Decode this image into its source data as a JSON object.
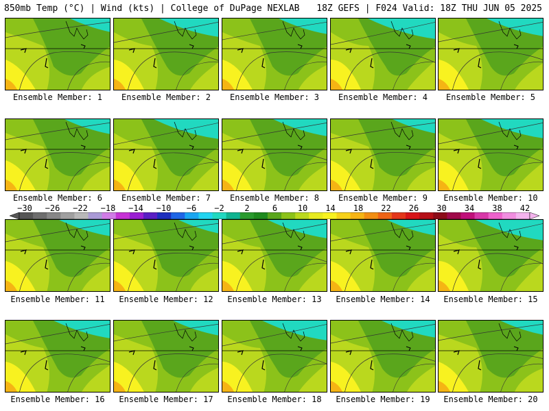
{
  "header": {
    "left": "850mb Temp (°C) | Wind (kts) | College of DuPage NEXLAB",
    "right": "18Z GEFS | F024 Valid: 18Z THU JUN 05 2025"
  },
  "members": [
    "Ensemble Member: 1",
    "Ensemble Member: 2",
    "Ensemble Member: 3",
    "Ensemble Member: 4",
    "Ensemble Member: 5",
    "Ensemble Member: 6",
    "Ensemble Member: 7",
    "Ensemble Member: 8",
    "Ensemble Member: 9",
    "Ensemble Member: 10",
    "Ensemble Member: 11",
    "Ensemble Member: 12",
    "Ensemble Member: 13",
    "Ensemble Member: 14",
    "Ensemble Member: 15",
    "Ensemble Member: 16",
    "Ensemble Member: 17",
    "Ensemble Member: 18",
    "Ensemble Member: 19",
    "Ensemble Member: 20"
  ],
  "colorbar": {
    "labels": [
      "−30",
      "−26",
      "−22",
      "−18",
      "−14",
      "−10",
      "−6",
      "−2",
      "2",
      "6",
      "10",
      "14",
      "18",
      "22",
      "26",
      "30",
      "34",
      "38",
      "42"
    ],
    "colors": [
      "#565656",
      "#6e6e6e",
      "#878787",
      "#a0a0a0",
      "#b8b8b8",
      "#a99ad6",
      "#d17ce6",
      "#c733d6",
      "#9a1fd1",
      "#5a1fc4",
      "#1d2fbd",
      "#1f66e6",
      "#1aa6f0",
      "#22d4f0",
      "#21d9c0",
      "#10b390",
      "#2a9a2e",
      "#1e8a1e",
      "#5aa61c",
      "#8cc21a",
      "#bad81e",
      "#e7ea20",
      "#f8f220",
      "#f6d21a",
      "#f5b414",
      "#f28e12",
      "#ee6416",
      "#e3361a",
      "#d61418",
      "#b51018",
      "#8c0c18",
      "#a00a4a",
      "#c0107a",
      "#d838a8",
      "#ee62cc",
      "#f18ee0",
      "#f4b4ee"
    ]
  },
  "map": {
    "land_base": "#8cc21a",
    "cool_water": "#21d9c0",
    "warm_dark": "#5aa61c",
    "warm_light": "#bad81e",
    "hot": "#f8f220",
    "hottest": "#f5b414"
  }
}
